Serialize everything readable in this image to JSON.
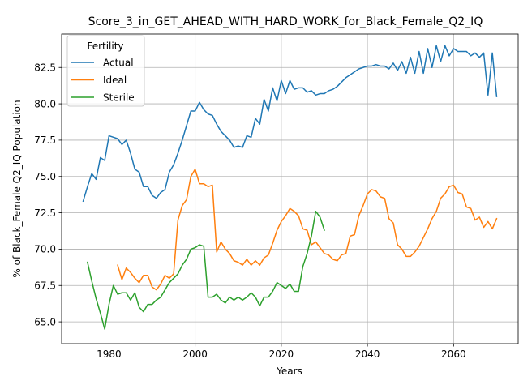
{
  "chart_data": {
    "type": "line",
    "title": "Score_3_in_GET_AHEAD_WITH_HARD_WORK_for_Black_Female_Q2_IQ",
    "xlabel": "Years",
    "ylabel": "% of Black_Female Q2_IQ Population",
    "xlim": [
      1969,
      2075
    ],
    "ylim": [
      63.5,
      84.8
    ],
    "x_ticks": [
      1980,
      2000,
      2020,
      2040,
      2060
    ],
    "y_ticks": [
      65.0,
      67.5,
      70.0,
      72.5,
      75.0,
      77.5,
      80.0,
      82.5
    ],
    "x_tick_labels": [
      "1980",
      "2000",
      "2020",
      "2040",
      "2060"
    ],
    "y_tick_labels": [
      "65.0",
      "67.5",
      "70.0",
      "72.5",
      "75.0",
      "77.5",
      "80.0",
      "82.5"
    ],
    "grid": true,
    "legend": {
      "title": "Fertility",
      "position": "top-left"
    },
    "series": [
      {
        "name": "Actual",
        "color": "#1f77b4",
        "x": [
          1974,
          1975,
          1976,
          1977,
          1978,
          1979,
          1980,
          1981,
          1982,
          1983,
          1984,
          1985,
          1986,
          1987,
          1988,
          1989,
          1990,
          1991,
          1992,
          1993,
          1994,
          1995,
          1996,
          1997,
          1998,
          1999,
          2000,
          2001,
          2002,
          2003,
          2004,
          2005,
          2006,
          2007,
          2008,
          2009,
          2010,
          2011,
          2012,
          2013,
          2014,
          2015,
          2016,
          2017,
          2018,
          2019,
          2020,
          2021,
          2022,
          2023,
          2024,
          2025,
          2026,
          2027,
          2028,
          2029,
          2030,
          2031,
          2032,
          2033,
          2034,
          2035,
          2036,
          2037,
          2038,
          2039,
          2040,
          2041,
          2042,
          2043,
          2044,
          2045,
          2046,
          2047,
          2048,
          2049,
          2050,
          2051,
          2052,
          2053,
          2054,
          2055,
          2056,
          2057,
          2058,
          2059,
          2060,
          2061,
          2062,
          2063,
          2064,
          2065,
          2066,
          2067,
          2068,
          2069,
          2070
        ],
        "values": [
          73.3,
          74.3,
          75.2,
          74.8,
          76.3,
          76.1,
          77.8,
          77.7,
          77.6,
          77.2,
          77.5,
          76.6,
          75.5,
          75.3,
          74.3,
          74.3,
          73.7,
          73.5,
          73.9,
          74.1,
          75.3,
          75.8,
          76.6,
          77.5,
          78.5,
          79.5,
          79.5,
          80.1,
          79.6,
          79.3,
          79.2,
          78.6,
          78.1,
          77.8,
          77.5,
          77.0,
          77.1,
          77.0,
          77.8,
          77.7,
          79.0,
          78.6,
          80.3,
          79.5,
          81.1,
          80.2,
          81.6,
          80.7,
          81.6,
          81.0,
          81.1,
          81.1,
          80.8,
          80.9,
          80.6,
          80.7,
          80.7,
          80.9,
          81.0,
          81.2,
          81.5,
          81.8,
          82.0,
          82.2,
          82.4,
          82.5,
          82.6,
          82.6,
          82.7,
          82.6,
          82.6,
          82.4,
          82.8,
          82.3,
          82.9,
          82.1,
          83.2,
          82.1,
          83.6,
          82.1,
          83.8,
          82.5,
          84.0,
          82.9,
          84.0,
          83.3,
          83.8,
          83.6,
          83.6,
          83.6,
          83.3,
          83.5,
          83.2,
          83.5,
          80.6,
          83.5,
          80.5
        ]
      },
      {
        "name": "Ideal",
        "color": "#ff7f0e",
        "x": [
          1982,
          1983,
          1984,
          1985,
          1986,
          1987,
          1988,
          1989,
          1990,
          1991,
          1992,
          1993,
          1994,
          1995,
          1996,
          1997,
          1998,
          1999,
          2000,
          2001,
          2002,
          2003,
          2004,
          2005,
          2006,
          2007,
          2008,
          2009,
          2010,
          2011,
          2012,
          2013,
          2014,
          2015,
          2016,
          2017,
          2018,
          2019,
          2020,
          2021,
          2022,
          2023,
          2024,
          2025,
          2026,
          2027,
          2028,
          2029,
          2030,
          2031,
          2032,
          2033,
          2034,
          2035,
          2036,
          2037,
          2038,
          2039,
          2040,
          2041,
          2042,
          2043,
          2044,
          2045,
          2046,
          2047,
          2048,
          2049,
          2050,
          2051,
          2052,
          2053,
          2054,
          2055,
          2056,
          2057,
          2058,
          2059,
          2060,
          2061,
          2062,
          2063,
          2064,
          2065,
          2066,
          2067,
          2068,
          2069,
          2070
        ],
        "values": [
          68.9,
          67.9,
          68.7,
          68.4,
          68.0,
          67.7,
          68.2,
          68.2,
          67.4,
          67.2,
          67.6,
          68.2,
          68.0,
          68.3,
          72.0,
          73.0,
          73.4,
          75.0,
          75.5,
          74.5,
          74.5,
          74.3,
          74.4,
          69.8,
          70.5,
          70.0,
          69.7,
          69.2,
          69.1,
          68.9,
          69.3,
          68.9,
          69.2,
          68.9,
          69.4,
          69.6,
          70.4,
          71.3,
          71.9,
          72.3,
          72.8,
          72.6,
          72.3,
          71.4,
          71.3,
          70.3,
          70.5,
          70.1,
          69.7,
          69.6,
          69.3,
          69.2,
          69.6,
          69.7,
          70.9,
          71.0,
          72.3,
          73.0,
          73.8,
          74.1,
          74.0,
          73.6,
          73.5,
          72.1,
          71.8,
          70.3,
          70.0,
          69.5,
          69.5,
          69.8,
          70.2,
          70.8,
          71.4,
          72.1,
          72.6,
          73.5,
          73.8,
          74.3,
          74.4,
          73.9,
          73.8,
          72.9,
          72.8,
          72.0,
          72.2,
          71.5,
          71.9,
          71.4,
          72.1
        ]
      },
      {
        "name": "Sterile",
        "color": "#2ca02c",
        "x": [
          1975,
          1976,
          1977,
          1978,
          1979,
          1980,
          1981,
          1982,
          1983,
          1984,
          1985,
          1986,
          1987,
          1988,
          1989,
          1990,
          1991,
          1992,
          1993,
          1994,
          1995,
          1996,
          1997,
          1998,
          1999,
          2000,
          2001,
          2002,
          2003,
          2004,
          2005,
          2006,
          2007,
          2008,
          2009,
          2010,
          2011,
          2012,
          2013,
          2014,
          2015,
          2016,
          2017,
          2018,
          2019,
          2020,
          2021,
          2022,
          2023,
          2024,
          2025,
          2026,
          2027,
          2028,
          2029,
          2030
        ],
        "values": [
          69.1,
          67.8,
          66.6,
          65.6,
          64.5,
          66.2,
          67.5,
          66.9,
          67.0,
          67.0,
          66.5,
          67.0,
          66.0,
          65.7,
          66.2,
          66.2,
          66.5,
          66.7,
          67.2,
          67.7,
          68.0,
          68.3,
          68.9,
          69.3,
          70.0,
          70.1,
          70.3,
          70.2,
          66.7,
          66.7,
          66.9,
          66.5,
          66.3,
          66.7,
          66.5,
          66.7,
          66.5,
          66.7,
          67.0,
          66.7,
          66.1,
          66.7,
          66.7,
          67.1,
          67.7,
          67.5,
          67.3,
          67.6,
          67.1,
          67.1,
          68.8,
          69.7,
          70.9,
          72.6,
          72.2,
          71.3
        ]
      }
    ]
  }
}
